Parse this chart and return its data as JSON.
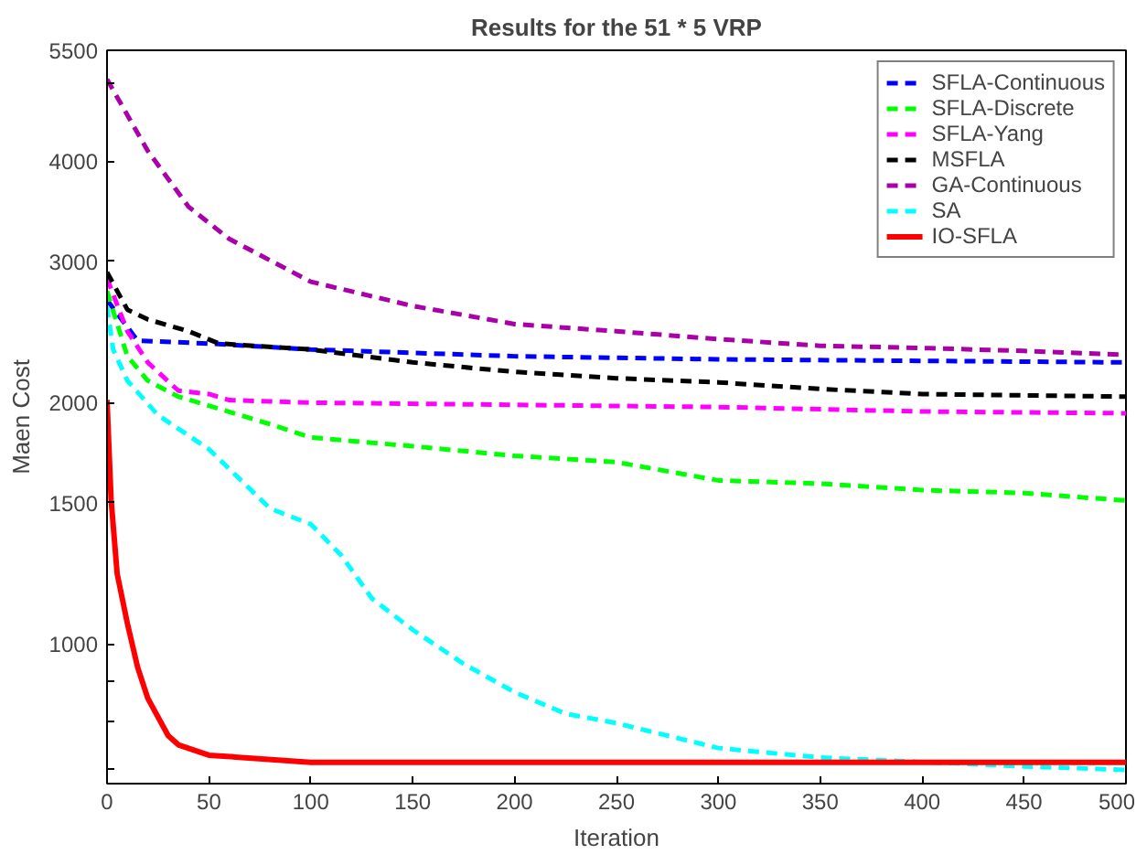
{
  "chart_data": {
    "type": "line",
    "title": "Results for the 51 * 5 VRP",
    "xlabel": "Iteration",
    "ylabel": "Maen Cost",
    "log": "y",
    "grid": false,
    "legend": "top right",
    "marker": "none",
    "xlim": [
      0,
      500
    ],
    "xticks": [
      0,
      50,
      100,
      150,
      200,
      250,
      300,
      350,
      400,
      450,
      500
    ],
    "ylim": [
      670,
      5500
    ],
    "yticks": [
      {
        "value": 700,
        "label": null
      },
      {
        "value": 800,
        "label": null
      },
      {
        "value": 900,
        "label": null
      },
      1000,
      1500,
      2000,
      3000,
      4000,
      {
        "value": 5000,
        "label": null
      },
      5500
    ],
    "series": [
      {
        "name": "SFLA-Continuous",
        "color": "#0000ff",
        "line_style": "dashed",
        "x": [
          0,
          15,
          50,
          100,
          200,
          300,
          400,
          500
        ],
        "values": [
          2685,
          2390,
          2370,
          2330,
          2285,
          2265,
          2255,
          2245
        ]
      },
      {
        "name": "SFLA-Discrete",
        "color": "#00ff00",
        "line_style": "dashed",
        "x": [
          0,
          10,
          20,
          35,
          55,
          80,
          100,
          150,
          200,
          250,
          300,
          350,
          400,
          450,
          500
        ],
        "values": [
          2755,
          2285,
          2130,
          2035,
          1965,
          1880,
          1810,
          1765,
          1717,
          1686,
          1600,
          1585,
          1556,
          1543,
          1510
        ]
      },
      {
        "name": "SFLA-Yang",
        "color": "#ff00ff",
        "line_style": "dashed",
        "x": [
          0,
          10,
          20,
          35,
          50,
          60,
          100,
          300,
          400,
          500
        ],
        "values": [
          2857,
          2455,
          2245,
          2070,
          2050,
          2015,
          2000,
          1975,
          1950,
          1940
        ]
      },
      {
        "name": "MSFLA",
        "color": "#000000",
        "line_style": "dashed",
        "x": [
          0,
          10,
          20,
          40,
          55,
          100,
          150,
          200,
          250,
          300,
          350,
          400,
          500
        ],
        "values": [
          2908,
          2612,
          2540,
          2455,
          2370,
          2330,
          2245,
          2185,
          2145,
          2120,
          2080,
          2050,
          2035
        ]
      },
      {
        "name": "GA-Continuous",
        "color": "#aa00aa",
        "line_style": "dashed",
        "x": [
          0,
          20,
          40,
          60,
          100,
          150,
          200,
          250,
          300,
          350,
          400,
          450,
          500
        ],
        "values": [
          5060,
          4120,
          3510,
          3200,
          2830,
          2640,
          2506,
          2455,
          2400,
          2355,
          2340,
          2320,
          2295
        ]
      },
      {
        "name": "SA",
        "color": "#00ffff",
        "line_style": "dashed",
        "x": [
          0,
          3,
          10,
          25,
          50,
          80,
          100,
          115,
          130,
          150,
          175,
          200,
          225,
          250,
          300,
          350,
          450,
          500
        ],
        "values": [
          2635,
          2330,
          2130,
          1930,
          1750,
          1476,
          1411,
          1290,
          1140,
          1042,
          945,
          871,
          819,
          797,
          742,
          722,
          704,
          697
        ]
      },
      {
        "name": "IO-SFLA",
        "color": "#ff0000",
        "line_style": "solid",
        "x": [
          0,
          2,
          5,
          10,
          15,
          20,
          30,
          35,
          50,
          100,
          500
        ],
        "values": [
          2016,
          1515,
          1223,
          1061,
          936,
          856,
          769,
          749,
          727,
          712,
          712
        ]
      }
    ]
  }
}
